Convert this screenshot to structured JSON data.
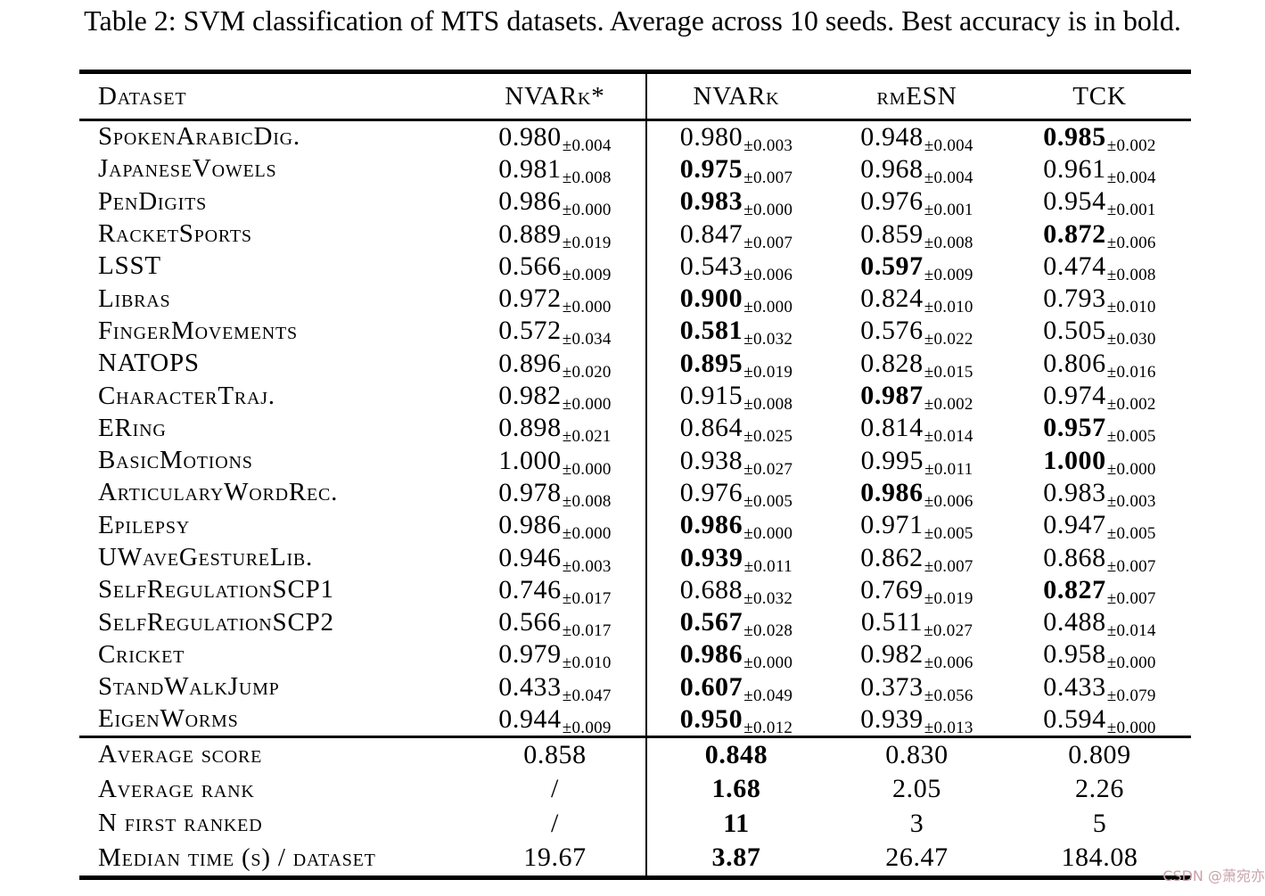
{
  "caption": "Table 2: SVM classification of MTS datasets. Average across 10 seeds. Best accuracy is in bold.",
  "watermark": "CSDN @萧宛亦",
  "colors": {
    "text": "#000000",
    "background": "#ffffff",
    "watermark": "#c9a2a9"
  },
  "table": {
    "columns": [
      {
        "key": "dataset",
        "label": "Dataset"
      },
      {
        "key": "nvark-star",
        "label": "NVARk*"
      },
      {
        "key": "nvark",
        "label": "NVARk"
      },
      {
        "key": "rmesn",
        "label": "rmESN"
      },
      {
        "key": "tck",
        "label": "TCK"
      }
    ],
    "rows": [
      {
        "dataset": "SpokenArabicDig.",
        "values": [
          {
            "value": "0.980",
            "pm": "±0.004",
            "bold": false
          },
          {
            "value": "0.980",
            "pm": "±0.003",
            "bold": false
          },
          {
            "value": "0.948",
            "pm": "±0.004",
            "bold": false
          },
          {
            "value": "0.985",
            "pm": "±0.002",
            "bold": true
          }
        ]
      },
      {
        "dataset": "JapaneseVowels",
        "values": [
          {
            "value": "0.981",
            "pm": "±0.008",
            "bold": false
          },
          {
            "value": "0.975",
            "pm": "±0.007",
            "bold": true
          },
          {
            "value": "0.968",
            "pm": "±0.004",
            "bold": false
          },
          {
            "value": "0.961",
            "pm": "±0.004",
            "bold": false
          }
        ]
      },
      {
        "dataset": "PenDigits",
        "values": [
          {
            "value": "0.986",
            "pm": "±0.000",
            "bold": false
          },
          {
            "value": "0.983",
            "pm": "±0.000",
            "bold": true
          },
          {
            "value": "0.976",
            "pm": "±0.001",
            "bold": false
          },
          {
            "value": "0.954",
            "pm": "±0.001",
            "bold": false
          }
        ]
      },
      {
        "dataset": "RacketSports",
        "values": [
          {
            "value": "0.889",
            "pm": "±0.019",
            "bold": false
          },
          {
            "value": "0.847",
            "pm": "±0.007",
            "bold": false
          },
          {
            "value": "0.859",
            "pm": "±0.008",
            "bold": false
          },
          {
            "value": "0.872",
            "pm": "±0.006",
            "bold": true
          }
        ]
      },
      {
        "dataset": "LSST",
        "values": [
          {
            "value": "0.566",
            "pm": "±0.009",
            "bold": false
          },
          {
            "value": "0.543",
            "pm": "±0.006",
            "bold": false
          },
          {
            "value": "0.597",
            "pm": "±0.009",
            "bold": true
          },
          {
            "value": "0.474",
            "pm": "±0.008",
            "bold": false
          }
        ]
      },
      {
        "dataset": "Libras",
        "values": [
          {
            "value": "0.972",
            "pm": "±0.000",
            "bold": false
          },
          {
            "value": "0.900",
            "pm": "±0.000",
            "bold": true
          },
          {
            "value": "0.824",
            "pm": "±0.010",
            "bold": false
          },
          {
            "value": "0.793",
            "pm": "±0.010",
            "bold": false
          }
        ]
      },
      {
        "dataset": "FingerMovements",
        "values": [
          {
            "value": "0.572",
            "pm": "±0.034",
            "bold": false
          },
          {
            "value": "0.581",
            "pm": "±0.032",
            "bold": true
          },
          {
            "value": "0.576",
            "pm": "±0.022",
            "bold": false
          },
          {
            "value": "0.505",
            "pm": "±0.030",
            "bold": false
          }
        ]
      },
      {
        "dataset": "NATOPS",
        "values": [
          {
            "value": "0.896",
            "pm": "±0.020",
            "bold": false
          },
          {
            "value": "0.895",
            "pm": "±0.019",
            "bold": true
          },
          {
            "value": "0.828",
            "pm": "±0.015",
            "bold": false
          },
          {
            "value": "0.806",
            "pm": "±0.016",
            "bold": false
          }
        ]
      },
      {
        "dataset": "CharacterTraj.",
        "values": [
          {
            "value": "0.982",
            "pm": "±0.000",
            "bold": false
          },
          {
            "value": "0.915",
            "pm": "±0.008",
            "bold": false
          },
          {
            "value": "0.987",
            "pm": "±0.002",
            "bold": true
          },
          {
            "value": "0.974",
            "pm": "±0.002",
            "bold": false
          }
        ]
      },
      {
        "dataset": "ERing",
        "values": [
          {
            "value": "0.898",
            "pm": "±0.021",
            "bold": false
          },
          {
            "value": "0.864",
            "pm": "±0.025",
            "bold": false
          },
          {
            "value": "0.814",
            "pm": "±0.014",
            "bold": false
          },
          {
            "value": "0.957",
            "pm": "±0.005",
            "bold": true
          }
        ]
      },
      {
        "dataset": "BasicMotions",
        "values": [
          {
            "value": "1.000",
            "pm": "±0.000",
            "bold": false
          },
          {
            "value": "0.938",
            "pm": "±0.027",
            "bold": false
          },
          {
            "value": "0.995",
            "pm": "±0.011",
            "bold": false
          },
          {
            "value": "1.000",
            "pm": "±0.000",
            "bold": true
          }
        ]
      },
      {
        "dataset": "ArticularyWordRec.",
        "values": [
          {
            "value": "0.978",
            "pm": "±0.008",
            "bold": false
          },
          {
            "value": "0.976",
            "pm": "±0.005",
            "bold": false
          },
          {
            "value": "0.986",
            "pm": "±0.006",
            "bold": true
          },
          {
            "value": "0.983",
            "pm": "±0.003",
            "bold": false
          }
        ]
      },
      {
        "dataset": "Epilepsy",
        "values": [
          {
            "value": "0.986",
            "pm": "±0.000",
            "bold": false
          },
          {
            "value": "0.986",
            "pm": "±0.000",
            "bold": true
          },
          {
            "value": "0.971",
            "pm": "±0.005",
            "bold": false
          },
          {
            "value": "0.947",
            "pm": "±0.005",
            "bold": false
          }
        ]
      },
      {
        "dataset": "UWaveGestureLib.",
        "values": [
          {
            "value": "0.946",
            "pm": "±0.003",
            "bold": false
          },
          {
            "value": "0.939",
            "pm": "±0.011",
            "bold": true
          },
          {
            "value": "0.862",
            "pm": "±0.007",
            "bold": false
          },
          {
            "value": "0.868",
            "pm": "±0.007",
            "bold": false
          }
        ]
      },
      {
        "dataset": "SelfRegulationSCP1",
        "values": [
          {
            "value": "0.746",
            "pm": "±0.017",
            "bold": false
          },
          {
            "value": "0.688",
            "pm": "±0.032",
            "bold": false
          },
          {
            "value": "0.769",
            "pm": "±0.019",
            "bold": false
          },
          {
            "value": "0.827",
            "pm": "±0.007",
            "bold": true
          }
        ]
      },
      {
        "dataset": "SelfRegulationSCP2",
        "values": [
          {
            "value": "0.566",
            "pm": "±0.017",
            "bold": false
          },
          {
            "value": "0.567",
            "pm": "±0.028",
            "bold": true
          },
          {
            "value": "0.511",
            "pm": "±0.027",
            "bold": false
          },
          {
            "value": "0.488",
            "pm": "±0.014",
            "bold": false
          }
        ]
      },
      {
        "dataset": "Cricket",
        "values": [
          {
            "value": "0.979",
            "pm": "±0.010",
            "bold": false
          },
          {
            "value": "0.986",
            "pm": "±0.000",
            "bold": true
          },
          {
            "value": "0.982",
            "pm": "±0.006",
            "bold": false
          },
          {
            "value": "0.958",
            "pm": "±0.000",
            "bold": false
          }
        ]
      },
      {
        "dataset": "StandWalkJump",
        "values": [
          {
            "value": "0.433",
            "pm": "±0.047",
            "bold": false
          },
          {
            "value": "0.607",
            "pm": "±0.049",
            "bold": true
          },
          {
            "value": "0.373",
            "pm": "±0.056",
            "bold": false
          },
          {
            "value": "0.433",
            "pm": "±0.079",
            "bold": false
          }
        ]
      },
      {
        "dataset": "EigenWorms",
        "values": [
          {
            "value": "0.944",
            "pm": "±0.009",
            "bold": false
          },
          {
            "value": "0.950",
            "pm": "±0.012",
            "bold": true
          },
          {
            "value": "0.939",
            "pm": "±0.013",
            "bold": false
          },
          {
            "value": "0.594",
            "pm": "±0.000",
            "bold": false
          }
        ]
      }
    ],
    "summary": [
      {
        "label": "Average score",
        "values": [
          {
            "value": "0.858",
            "bold": false
          },
          {
            "value": "0.848",
            "bold": true
          },
          {
            "value": "0.830",
            "bold": false
          },
          {
            "value": "0.809",
            "bold": false
          }
        ]
      },
      {
        "label": "Average rank",
        "values": [
          {
            "value": "/",
            "bold": false
          },
          {
            "value": "1.68",
            "bold": true
          },
          {
            "value": "2.05",
            "bold": false
          },
          {
            "value": "2.26",
            "bold": false
          }
        ]
      },
      {
        "label": "N first ranked",
        "values": [
          {
            "value": "/",
            "bold": false
          },
          {
            "value": "11",
            "bold": true
          },
          {
            "value": "3",
            "bold": false
          },
          {
            "value": "5",
            "bold": false
          }
        ]
      },
      {
        "label": "Median time (s) / dataset",
        "values": [
          {
            "value": "19.67",
            "bold": false
          },
          {
            "value": "3.87",
            "bold": true
          },
          {
            "value": "26.47",
            "bold": false
          },
          {
            "value": "184.08",
            "bold": false
          }
        ]
      }
    ]
  }
}
